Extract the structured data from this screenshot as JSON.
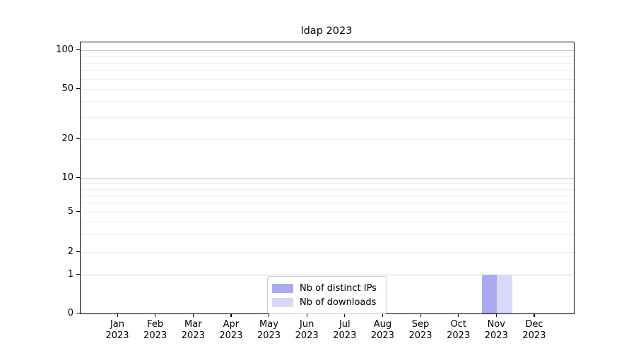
{
  "chart_data": {
    "type": "bar",
    "title": "ldap 2023",
    "categories": [
      "Jan 2023",
      "Feb 2023",
      "Mar 2023",
      "Apr 2023",
      "May 2023",
      "Jun 2023",
      "Jul 2023",
      "Aug 2023",
      "Sep 2023",
      "Oct 2023",
      "Nov 2023",
      "Dec 2023"
    ],
    "series": [
      {
        "name": "Nb of distinct IPs",
        "color": "#aaaaf0",
        "values": [
          0,
          0,
          0,
          0,
          0,
          0,
          0,
          0,
          0,
          0,
          1,
          0
        ]
      },
      {
        "name": "Nb of downloads",
        "color": "#d8d8f8",
        "values": [
          0,
          0,
          0,
          0,
          0,
          0,
          0,
          0,
          0,
          0,
          1,
          0
        ]
      }
    ],
    "xlabel": "",
    "ylabel": "",
    "y_axis": {
      "scale": "symlog",
      "tick_values": [
        0,
        1,
        2,
        5,
        10,
        20,
        50,
        100
      ],
      "tick_labels": [
        "0",
        "1",
        "2",
        "5",
        "10",
        "20",
        "50",
        "100"
      ],
      "strong_gridline_values": [
        1,
        10,
        100
      ],
      "weak_gridline_values": [
        2,
        3,
        4,
        5,
        6,
        7,
        8,
        9,
        20,
        30,
        40,
        50,
        60,
        70,
        80,
        90
      ],
      "ylim": [
        0,
        115
      ]
    },
    "legend": {
      "position": "lower center",
      "entries": [
        "Nb of distinct IPs",
        "Nb of downloads"
      ]
    },
    "grid": true
  },
  "colors": {
    "background": "#ffffff",
    "axis": "#000000",
    "grid_strong": "#cccccc",
    "grid_weak": "#ececec",
    "bar_distinct_ips": "#aaaaf0",
    "bar_downloads": "#d8d8f8",
    "legend_border": "#cccccc"
  }
}
